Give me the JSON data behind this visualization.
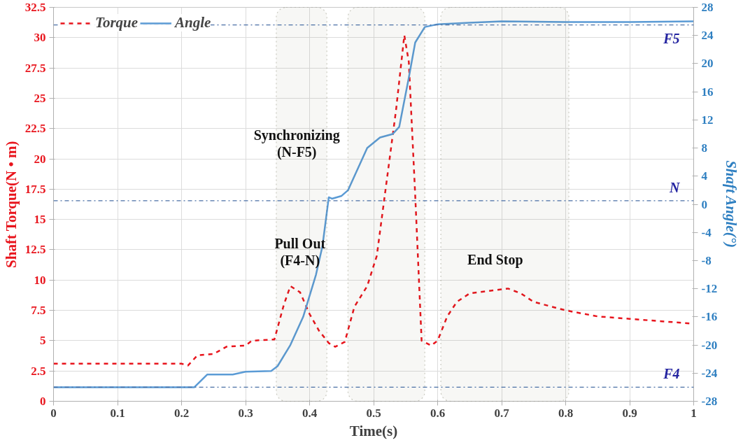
{
  "chart_data": {
    "type": "line",
    "xlabel": "Time(s)",
    "ylabel": "Shaft Torque(N • m)",
    "y2label": "Shaft Angle(°)",
    "xlim": [
      0,
      1
    ],
    "xticks": [
      0,
      0.1,
      0.2,
      0.3,
      0.4,
      0.5,
      0.6,
      0.7,
      0.8,
      0.9,
      1
    ],
    "ylim": [
      0,
      32.5
    ],
    "yticks": [
      0,
      2.5,
      5,
      7.5,
      10,
      12.5,
      15,
      17.5,
      20,
      22.5,
      25,
      27.5,
      30,
      32.5
    ],
    "y2lim": [
      -28,
      28
    ],
    "y2ticks": [
      -28,
      -24,
      -20,
      -16,
      -12,
      -8,
      -4,
      0,
      4,
      8,
      12,
      16,
      20,
      24,
      28
    ],
    "grid": true,
    "legend": "top left",
    "marker": "none",
    "series": [
      {
        "name": "Torque",
        "color": "#e8141c",
        "line_style": "dashed",
        "x": [
          0,
          0.1,
          0.2,
          0.21,
          0.225,
          0.25,
          0.27,
          0.3,
          0.31,
          0.345,
          0.36,
          0.37,
          0.385,
          0.4,
          0.415,
          0.43,
          0.44,
          0.455,
          0.47,
          0.49,
          0.505,
          0.52,
          0.535,
          0.548,
          0.555,
          0.565,
          0.575,
          0.59,
          0.6,
          0.615,
          0.63,
          0.65,
          0.68,
          0.71,
          0.73,
          0.75,
          0.8,
          0.85,
          0.9,
          0.95,
          1
        ],
        "values": [
          3.1,
          3.1,
          3.1,
          2.95,
          3.8,
          3.9,
          4.5,
          4.6,
          5.0,
          5.1,
          8.0,
          9.5,
          9.0,
          7.2,
          5.8,
          4.8,
          4.5,
          4.9,
          7.8,
          9.5,
          12.0,
          18.0,
          24.0,
          30.2,
          28.0,
          17.0,
          5.0,
          4.6,
          5.0,
          7.0,
          8.2,
          8.9,
          9.1,
          9.3,
          8.9,
          8.2,
          7.5,
          7.0,
          6.8,
          6.6,
          6.4
        ]
      },
      {
        "name": "Angle",
        "color": "#5b9bd5",
        "line_style": "solid",
        "axis": "y2",
        "x": [
          0,
          0.1,
          0.22,
          0.24,
          0.28,
          0.3,
          0.34,
          0.35,
          0.37,
          0.39,
          0.41,
          0.42,
          0.43,
          0.435,
          0.45,
          0.46,
          0.475,
          0.49,
          0.51,
          0.53,
          0.54,
          0.555,
          0.565,
          0.58,
          0.6,
          0.65,
          0.7,
          0.8,
          0.9,
          1
        ],
        "values": [
          -26,
          -26,
          -26,
          -24.2,
          -24.2,
          -23.8,
          -23.7,
          -23,
          -20,
          -16,
          -10,
          -6,
          1.0,
          0.8,
          1.2,
          2,
          5,
          8,
          9.5,
          10,
          11,
          18,
          23,
          25.2,
          25.6,
          25.8,
          26.0,
          25.9,
          25.9,
          26.0
        ]
      }
    ],
    "ref_lines": [
      {
        "axis": "y2",
        "value": 25.5,
        "label": "F5",
        "color": "#4a6fa5",
        "line_style": "dashdot"
      },
      {
        "axis": "y2",
        "value": 0.5,
        "label": "N",
        "color": "#4a6fa5",
        "line_style": "dashdot"
      },
      {
        "axis": "y2",
        "value": -26,
        "label": "F4",
        "color": "#4a6fa5",
        "line_style": "dashdot"
      }
    ],
    "bands": [
      {
        "axis": "x",
        "from": 0.348,
        "to": 0.427,
        "color": "#5a5a3a"
      },
      {
        "axis": "x",
        "from": 0.46,
        "to": 0.58,
        "color": "#5a5a3a"
      },
      {
        "axis": "x",
        "from": 0.605,
        "to": 0.805,
        "color": "#5a5a3a"
      }
    ],
    "annotations": [
      "Pull Out\n(F4-N)",
      "Synchronizing\n(N-F5)",
      "End Stop"
    ]
  }
}
